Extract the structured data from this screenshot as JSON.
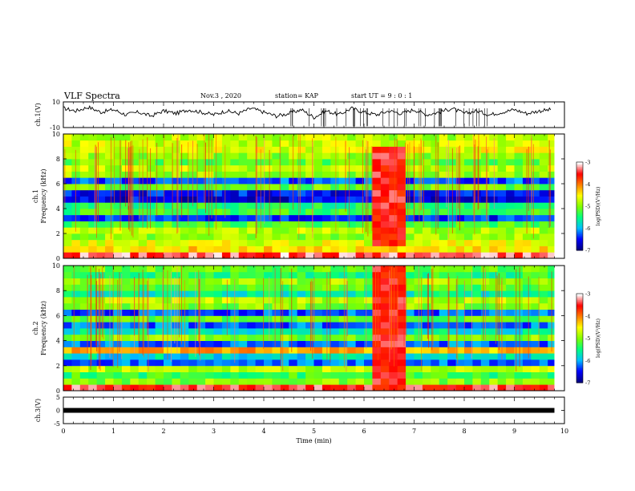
{
  "header": {
    "title": "VLF Spectra",
    "date": "Nov.3 , 2020",
    "station": "station= KAP",
    "start_ut": "start UT = 9 : 0 : 1"
  },
  "chart_data": [
    {
      "type": "line",
      "ylabel": "ch.1(V)",
      "ylim": [
        -10,
        10
      ],
      "yticks": [
        "10",
        "-10"
      ],
      "xlim": [
        0,
        10
      ],
      "series": [
        {
          "x": [
            0,
            0.25,
            0.5,
            0.75,
            1,
            1.25,
            1.5,
            1.75,
            2,
            2.25,
            2.5,
            2.75,
            3,
            3.25,
            3.5,
            3.75,
            4,
            4.25,
            4.5,
            4.75,
            5,
            5.25,
            5.5,
            5.75,
            6,
            6.25,
            6.5,
            6.75,
            7,
            7.25,
            7.5,
            7.75,
            8,
            8.25,
            8.5,
            8.75,
            9,
            9.25,
            9.5,
            9.75
          ],
          "values": [
            5,
            3,
            6,
            2,
            4,
            0,
            2,
            -1,
            3,
            1,
            4,
            2,
            0,
            3,
            1,
            5,
            2,
            -1,
            1,
            4,
            -2,
            3,
            0,
            5,
            2,
            0,
            3,
            1,
            4,
            0,
            2,
            5,
            1,
            3,
            0,
            2,
            4,
            1,
            3,
            4
          ],
          "color": "#000000"
        }
      ]
    },
    {
      "type": "heatmap",
      "ylabel": "ch.1\nFrequency (kHz)",
      "ylim": [
        0,
        10
      ],
      "yticks": [
        "0",
        "2",
        "4",
        "6",
        "8",
        "10"
      ],
      "xlim": [
        0,
        10
      ],
      "freq_khz": [
        0.25,
        0.75,
        1.25,
        1.75,
        2.25,
        2.75,
        3.25,
        3.75,
        4.25,
        4.75,
        5.25,
        5.75,
        6.25,
        6.75,
        7.25,
        7.75,
        8.25,
        8.75,
        9.25,
        9.75
      ],
      "log_psd": [
        -3.3,
        -4.4,
        -4.6,
        -4.9,
        -4.8,
        -5.2,
        -6.4,
        -5.3,
        -5.4,
        -6.6,
        -6.5,
        -5.1,
        -6.3,
        -4.9,
        -4.8,
        -5.1,
        -4.9,
        -4.6,
        -4.7,
        -4.8
      ],
      "burst": {
        "t_start": 6.15,
        "t_end": 6.7,
        "f_min": 1.0,
        "f_max": 9.0,
        "log_psd": -3.5
      },
      "colorbar": {
        "label": "log(PSD)(V²/Hz)",
        "range": [
          -7,
          -3
        ],
        "ticks": [
          "-3",
          "-4",
          "-5",
          "-6",
          "-7"
        ],
        "colors": [
          "#000080",
          "#0000ff",
          "#00bfff",
          "#00ff80",
          "#80ff00",
          "#ffff00",
          "#ff8000",
          "#ff0000",
          "#ffffff"
        ]
      }
    },
    {
      "type": "heatmap",
      "ylabel": "ch.2\nFrequency (kHz)",
      "ylim": [
        0,
        10
      ],
      "yticks": [
        "0",
        "2",
        "4",
        "6",
        "8",
        "10"
      ],
      "xlim": [
        0,
        10
      ],
      "freq_khz": [
        0.25,
        0.75,
        1.25,
        1.75,
        2.25,
        2.75,
        3.25,
        3.75,
        4.25,
        4.75,
        5.25,
        5.75,
        6.25,
        6.75,
        7.25,
        7.75,
        8.25,
        8.75,
        9.25,
        9.75
      ],
      "log_psd": [
        -3.4,
        -5.0,
        -5.3,
        -4.8,
        -6.2,
        -5.8,
        -4.2,
        -6.2,
        -5.0,
        -5.7,
        -6.2,
        -5.1,
        -6.3,
        -5.0,
        -4.8,
        -5.6,
        -5.2,
        -4.9,
        -5.4,
        -5.1
      ],
      "burst": {
        "t_start": 6.15,
        "t_end": 6.7,
        "f_min": 0.5,
        "f_max": 10.0,
        "log_psd": -3.5
      },
      "colorbar": {
        "label": "log(PSD)(V²/Hz)",
        "range": [
          -7,
          -3
        ],
        "ticks": [
          "-3",
          "-4",
          "-5",
          "-6",
          "-7"
        ],
        "colors": [
          "#000080",
          "#0000ff",
          "#00bfff",
          "#00ff80",
          "#80ff00",
          "#ffff00",
          "#ff8000",
          "#ff0000",
          "#ffffff"
        ]
      }
    },
    {
      "type": "line",
      "ylabel": "ch.3(V)",
      "ylim": [
        -5,
        5
      ],
      "yticks": [
        "5",
        "0",
        "-5"
      ],
      "xlim": [
        0,
        10
      ],
      "xlabel": "Time (min)",
      "xticks": [
        "0",
        "1",
        "2",
        "3",
        "4",
        "5",
        "6",
        "7",
        "8",
        "9",
        "10"
      ],
      "series": [
        {
          "x": [
            0,
            9.8
          ],
          "values": [
            0,
            0
          ],
          "color": "#000000"
        }
      ]
    }
  ]
}
